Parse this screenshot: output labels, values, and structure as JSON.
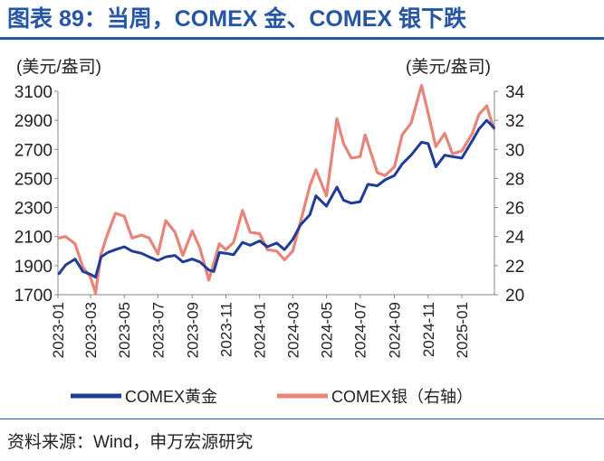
{
  "header": {
    "title": "图表 89：当周，COMEX 金、COMEX 银下跌"
  },
  "footer": {
    "source": "资料来源：Wind，申万宏源研究"
  },
  "chart_data": {
    "type": "line",
    "title": "图表 89：当周，COMEX 金、COMEX 银下跌",
    "y_left": {
      "unit": "(美元/盎司)",
      "min": 1700,
      "max": 3100,
      "ticks": [
        1700,
        1900,
        2100,
        2300,
        2500,
        2700,
        2900,
        3100
      ]
    },
    "y_right": {
      "unit": "(美元/盎司)",
      "min": 20,
      "max": 34,
      "ticks": [
        20,
        22,
        24,
        26,
        28,
        30,
        32,
        34
      ]
    },
    "x_ticks": [
      "2023-01",
      "2023-03",
      "2023-05",
      "2023-07",
      "2023-09",
      "2023-11",
      "2024-01",
      "2024-03",
      "2024-05",
      "2024-07",
      "2024-09",
      "2024-11",
      "2025-01"
    ],
    "grid": false,
    "legend_position": "bottom",
    "series": [
      {
        "name": "COMEX黄金",
        "axis": "left",
        "color": "#1f3c96",
        "points": [
          [
            "2023-01-03",
            1845
          ],
          [
            "2023-01-15",
            1905
          ],
          [
            "2023-02-01",
            1945
          ],
          [
            "2023-02-15",
            1860
          ],
          [
            "2023-03-01",
            1840
          ],
          [
            "2023-03-10",
            1820
          ],
          [
            "2023-03-20",
            1960
          ],
          [
            "2023-04-01",
            1990
          ],
          [
            "2023-04-15",
            2010
          ],
          [
            "2023-05-01",
            2030
          ],
          [
            "2023-05-15",
            2000
          ],
          [
            "2023-06-01",
            1985
          ],
          [
            "2023-06-15",
            1960
          ],
          [
            "2023-07-01",
            1935
          ],
          [
            "2023-07-15",
            1960
          ],
          [
            "2023-08-01",
            1970
          ],
          [
            "2023-08-15",
            1925
          ],
          [
            "2023-09-01",
            1945
          ],
          [
            "2023-09-15",
            1925
          ],
          [
            "2023-10-01",
            1870
          ],
          [
            "2023-10-10",
            1860
          ],
          [
            "2023-10-20",
            1990
          ],
          [
            "2023-11-01",
            1985
          ],
          [
            "2023-11-15",
            1975
          ],
          [
            "2023-12-01",
            2060
          ],
          [
            "2023-12-15",
            2040
          ],
          [
            "2024-01-01",
            2070
          ],
          [
            "2024-01-15",
            2030
          ],
          [
            "2024-02-01",
            2055
          ],
          [
            "2024-02-15",
            2010
          ],
          [
            "2024-03-01",
            2080
          ],
          [
            "2024-03-15",
            2180
          ],
          [
            "2024-04-01",
            2250
          ],
          [
            "2024-04-12",
            2380
          ],
          [
            "2024-05-01",
            2310
          ],
          [
            "2024-05-20",
            2440
          ],
          [
            "2024-06-01",
            2350
          ],
          [
            "2024-06-15",
            2330
          ],
          [
            "2024-07-01",
            2340
          ],
          [
            "2024-07-15",
            2460
          ],
          [
            "2024-08-01",
            2450
          ],
          [
            "2024-08-15",
            2490
          ],
          [
            "2024-09-01",
            2520
          ],
          [
            "2024-09-15",
            2600
          ],
          [
            "2024-10-01",
            2660
          ],
          [
            "2024-10-20",
            2750
          ],
          [
            "2024-11-01",
            2740
          ],
          [
            "2024-11-15",
            2580
          ],
          [
            "2024-12-01",
            2660
          ],
          [
            "2024-12-15",
            2650
          ],
          [
            "2025-01-01",
            2640
          ],
          [
            "2025-01-20",
            2760
          ],
          [
            "2025-02-01",
            2840
          ],
          [
            "2025-02-15",
            2900
          ],
          [
            "2025-02-28",
            2850
          ]
        ]
      },
      {
        "name": "COMEX银（右轴）",
        "axis": "right",
        "color": "#e8847a",
        "points": [
          [
            "2023-01-03",
            23.9
          ],
          [
            "2023-01-15",
            24.0
          ],
          [
            "2023-02-01",
            23.5
          ],
          [
            "2023-02-15",
            21.9
          ],
          [
            "2023-03-01",
            21.2
          ],
          [
            "2023-03-10",
            20.1
          ],
          [
            "2023-03-20",
            22.8
          ],
          [
            "2023-04-01",
            24.2
          ],
          [
            "2023-04-15",
            25.6
          ],
          [
            "2023-05-01",
            25.4
          ],
          [
            "2023-05-15",
            23.9
          ],
          [
            "2023-06-01",
            24.1
          ],
          [
            "2023-06-15",
            23.9
          ],
          [
            "2023-07-01",
            22.8
          ],
          [
            "2023-07-15",
            25.1
          ],
          [
            "2023-08-01",
            24.3
          ],
          [
            "2023-08-15",
            22.7
          ],
          [
            "2023-09-01",
            24.4
          ],
          [
            "2023-09-15",
            23.2
          ],
          [
            "2023-10-01",
            21.0
          ],
          [
            "2023-10-20",
            23.5
          ],
          [
            "2023-11-01",
            23.1
          ],
          [
            "2023-11-15",
            23.6
          ],
          [
            "2023-12-01",
            25.8
          ],
          [
            "2023-12-15",
            24.3
          ],
          [
            "2024-01-01",
            24.2
          ],
          [
            "2024-01-15",
            23.1
          ],
          [
            "2024-02-01",
            23.0
          ],
          [
            "2024-02-15",
            22.4
          ],
          [
            "2024-03-01",
            23.0
          ],
          [
            "2024-03-15",
            25.0
          ],
          [
            "2024-04-01",
            27.5
          ],
          [
            "2024-04-12",
            28.6
          ],
          [
            "2024-05-01",
            26.8
          ],
          [
            "2024-05-20",
            32.1
          ],
          [
            "2024-06-01",
            30.4
          ],
          [
            "2024-06-15",
            29.4
          ],
          [
            "2024-07-01",
            29.5
          ],
          [
            "2024-07-10",
            31.0
          ],
          [
            "2024-08-01",
            28.4
          ],
          [
            "2024-08-15",
            28.2
          ],
          [
            "2024-09-01",
            28.8
          ],
          [
            "2024-09-15",
            31.0
          ],
          [
            "2024-10-01",
            31.8
          ],
          [
            "2024-10-20",
            34.4
          ],
          [
            "2024-11-01",
            32.5
          ],
          [
            "2024-11-15",
            30.2
          ],
          [
            "2024-12-01",
            31.1
          ],
          [
            "2024-12-15",
            29.7
          ],
          [
            "2025-01-01",
            29.9
          ],
          [
            "2025-01-20",
            31.1
          ],
          [
            "2025-02-01",
            32.4
          ],
          [
            "2025-02-15",
            33.0
          ],
          [
            "2025-02-28",
            31.4
          ]
        ]
      }
    ]
  }
}
